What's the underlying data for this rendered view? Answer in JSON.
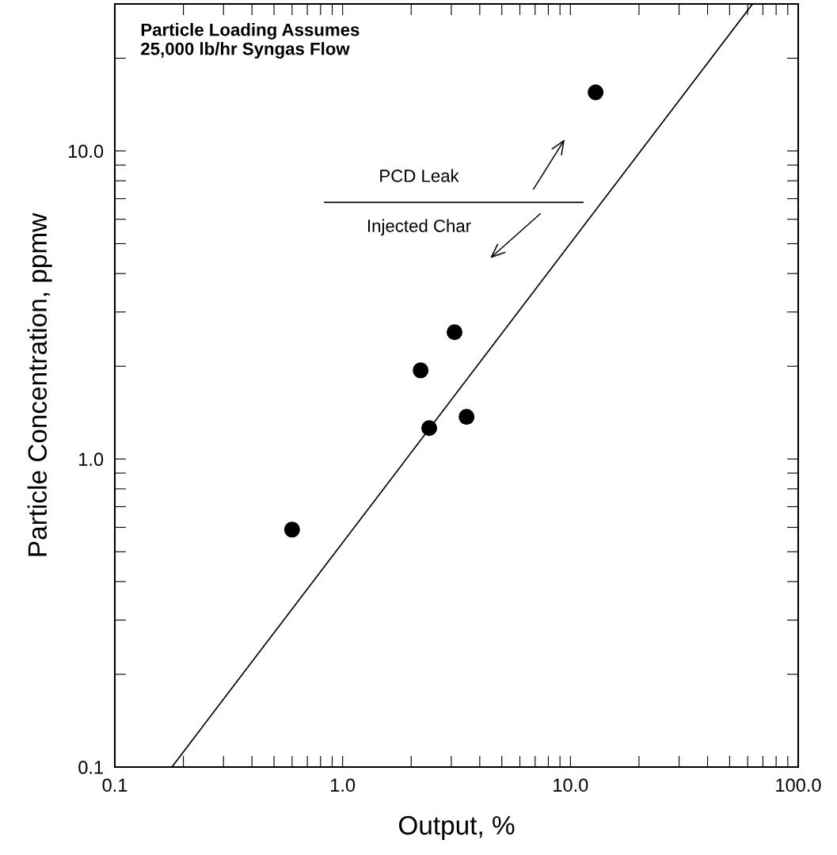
{
  "chart_data": {
    "type": "scatter",
    "xlabel": "Output, %",
    "ylabel": "Particle Concentration, ppmw",
    "log": "xy",
    "grid": false,
    "marker": "circle",
    "annotations": [
      "Particle Loading Assumes\n25,000 lb/hr Syngas Flow",
      "PCD Leak",
      "Injected Char"
    ],
    "series": [
      {
        "color": "#000000",
        "x": [
          0.6,
          2.2,
          2.4,
          3.1,
          3.5,
          12.9
        ],
        "values": [
          0.59,
          1.94,
          1.26,
          2.58,
          1.37,
          15.5
        ]
      },
      {
        "type": "line",
        "color": "#000000",
        "marker": "none",
        "line_style": "solid",
        "x": [
          0.178,
          62.8
        ],
        "values": [
          0.1,
          29.9
        ]
      }
    ],
    "xlim": [
      0.1,
      100
    ],
    "ylim": [
      0.1,
      30
    ],
    "xticks": [
      {
        "value": 0.1,
        "label": "0.1"
      },
      {
        "value": 0.2,
        "label": null
      },
      {
        "value": 0.3,
        "label": null
      },
      {
        "value": 0.4,
        "label": null
      },
      {
        "value": 0.5,
        "label": null
      },
      {
        "value": 0.6,
        "label": null
      },
      {
        "value": 0.7,
        "label": null
      },
      {
        "value": 0.8,
        "label": null
      },
      {
        "value": 0.9,
        "label": null
      },
      {
        "value": 1,
        "label": "1.0"
      },
      {
        "value": 2,
        "label": null
      },
      {
        "value": 3,
        "label": null
      },
      {
        "value": 4,
        "label": null
      },
      {
        "value": 5,
        "label": null
      },
      {
        "value": 6,
        "label": null
      },
      {
        "value": 7,
        "label": null
      },
      {
        "value": 8,
        "label": null
      },
      {
        "value": 9,
        "label": null
      },
      {
        "value": 10,
        "label": "10.0"
      },
      {
        "value": 20,
        "label": null
      },
      {
        "value": 30,
        "label": null
      },
      {
        "value": 40,
        "label": null
      },
      {
        "value": 50,
        "label": null
      },
      {
        "value": 60,
        "label": null
      },
      {
        "value": 70,
        "label": null
      },
      {
        "value": 80,
        "label": null
      },
      {
        "value": 90,
        "label": null
      },
      {
        "value": 100,
        "label": "100.0"
      }
    ],
    "yticks": [
      {
        "value": 0.1,
        "label": "0.1"
      },
      {
        "value": 0.2,
        "label": null
      },
      {
        "value": 0.3,
        "label": null
      },
      {
        "value": 0.4,
        "label": null
      },
      {
        "value": 0.5,
        "label": null
      },
      {
        "value": 0.6,
        "label": null
      },
      {
        "value": 0.7,
        "label": null
      },
      {
        "value": 0.8,
        "label": null
      },
      {
        "value": 0.9,
        "label": null
      },
      {
        "value": 1,
        "label": "1.0"
      },
      {
        "value": 2,
        "label": null
      },
      {
        "value": 3,
        "label": null
      },
      {
        "value": 4,
        "label": null
      },
      {
        "value": 5,
        "label": null
      },
      {
        "value": 6,
        "label": null
      },
      {
        "value": 7,
        "label": null
      },
      {
        "value": 8,
        "label": null
      },
      {
        "value": 9,
        "label": null
      },
      {
        "value": 10,
        "label": "10.0"
      },
      {
        "value": 20,
        "label": null
      }
    ]
  }
}
